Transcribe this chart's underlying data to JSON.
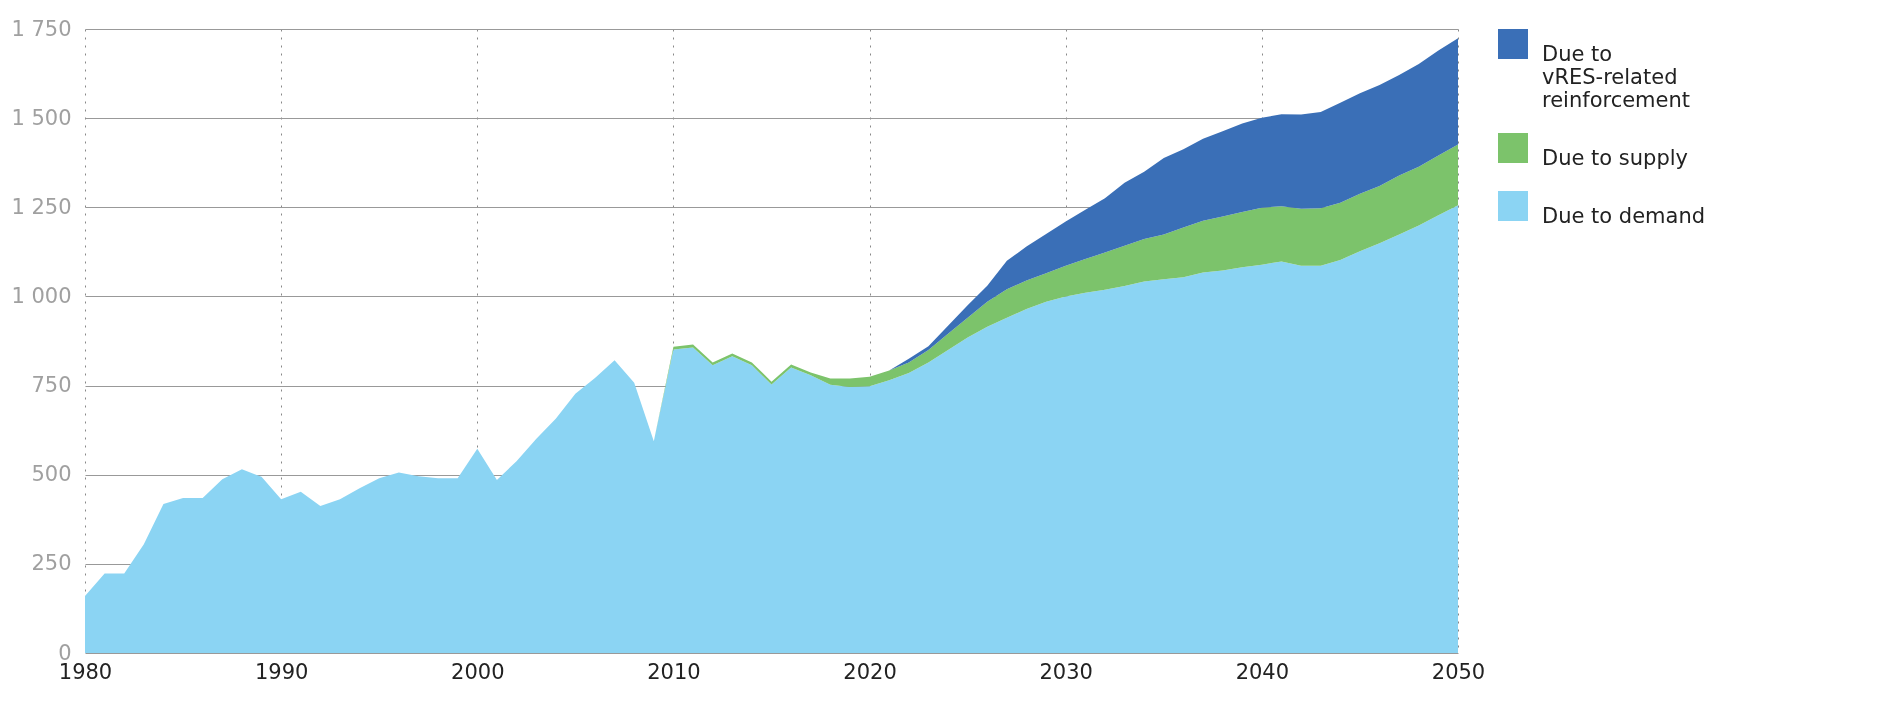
{
  "chart_data": {
    "type": "area",
    "stacked": true,
    "x": [
      1980,
      1981,
      1982,
      1983,
      1984,
      1985,
      1986,
      1987,
      1988,
      1989,
      1990,
      1991,
      1992,
      1993,
      1994,
      1995,
      1996,
      1997,
      1998,
      1999,
      2000,
      2001,
      2002,
      2003,
      2004,
      2005,
      2006,
      2007,
      2008,
      2009,
      2010,
      2011,
      2012,
      2013,
      2014,
      2015,
      2016,
      2017,
      2018,
      2019,
      2020,
      2021,
      2022,
      2023,
      2024,
      2025,
      2026,
      2027,
      2028,
      2029,
      2030,
      2031,
      2032,
      2033,
      2034,
      2035,
      2036,
      2037,
      2038,
      2039,
      2040,
      2041,
      2042,
      2043,
      2044,
      2045,
      2046,
      2047,
      2048,
      2049,
      2050
    ],
    "series": [
      {
        "name": "Due to demand",
        "color": "#8bd4f3",
        "values": [
          160,
          223,
          223,
          305,
          418,
          435,
          435,
          487,
          515,
          494,
          431,
          452,
          412,
          431,
          462,
          490,
          506,
          496,
          490,
          490,
          573,
          485,
          538,
          600,
          657,
          727,
          771,
          821,
          758,
          594,
          851,
          857,
          807,
          832,
          807,
          753,
          801,
          779,
          752,
          746,
          748,
          765,
          785,
          815,
          850,
          885,
          915,
          940,
          965,
          985,
          1000,
          1010,
          1019,
          1029,
          1042,
          1048,
          1054,
          1067,
          1073,
          1082,
          1089,
          1098,
          1086,
          1086,
          1102,
          1127,
          1149,
          1174,
          1199,
          1228,
          1256
        ]
      },
      {
        "name": "Due to supply",
        "color": "#7cc36b",
        "values": [
          0,
          0,
          0,
          0,
          0,
          0,
          0,
          0,
          0,
          0,
          0,
          0,
          0,
          0,
          0,
          0,
          0,
          0,
          0,
          0,
          0,
          0,
          0,
          0,
          0,
          0,
          0,
          0,
          0,
          0,
          8,
          8,
          8,
          8,
          8,
          8,
          8,
          8,
          18,
          24,
          27,
          27,
          30,
          35,
          45,
          55,
          70,
          80,
          80,
          80,
          86,
          95,
          104,
          113,
          119,
          126,
          139,
          145,
          151,
          155,
          160,
          155,
          160,
          161,
          161,
          161,
          161,
          165,
          165,
          167,
          170
        ]
      },
      {
        "name": "Due to vRES-related reinforcement",
        "color": "#3a6fb7",
        "values": [
          0,
          0,
          0,
          0,
          0,
          0,
          0,
          0,
          0,
          0,
          0,
          0,
          0,
          0,
          0,
          0,
          0,
          0,
          0,
          0,
          0,
          0,
          0,
          0,
          0,
          0,
          0,
          0,
          0,
          0,
          0,
          0,
          0,
          0,
          0,
          0,
          0,
          0,
          0,
          0,
          0,
          0,
          10,
          10,
          23,
          35,
          45,
          80,
          95,
          110,
          124,
          138,
          152,
          177,
          189,
          214,
          220,
          230,
          239,
          248,
          252,
          258,
          264,
          270,
          280,
          282,
          283,
          282,
          288,
          295,
          298
        ]
      }
    ],
    "xlim": [
      1980,
      2050
    ],
    "xticks": [
      1980,
      1990,
      2000,
      2010,
      2020,
      2030,
      2040,
      2050
    ],
    "ylim": [
      0,
      1750
    ],
    "yticks": [
      0,
      250,
      500,
      750,
      {
        "value": 1000,
        "label": "1 000"
      },
      {
        "value": 1250,
        "label": "1 250"
      },
      {
        "value": 1500,
        "label": "1 500"
      },
      {
        "value": 1750,
        "label": "1 750"
      }
    ],
    "grid": true,
    "legend": "top right"
  }
}
